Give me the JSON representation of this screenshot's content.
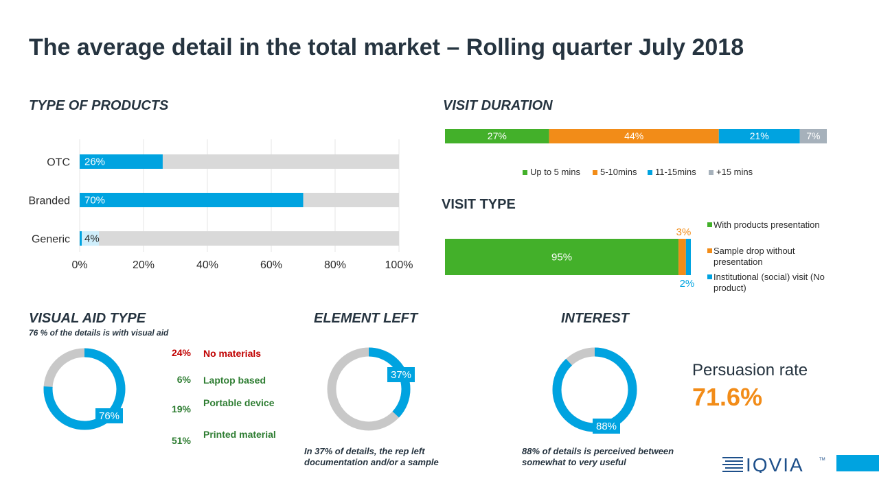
{
  "title": "The average detail in the total market – Rolling quarter July 2018",
  "colors": {
    "blue": "#00a3e0",
    "green": "#43b02a",
    "orange": "#f28c18",
    "gray": "#a6b1bb",
    "track": "#d9d9d9",
    "red": "#c00000",
    "dark_green": "#2e7d32"
  },
  "chart_data": [
    {
      "id": "type_of_products",
      "type": "bar",
      "orientation": "horizontal",
      "title": "TYPE OF PRODUCTS",
      "categories": [
        "OTC",
        "Branded",
        "Generic"
      ],
      "values": [
        26,
        70,
        4
      ],
      "value_labels": [
        "26%",
        "70%",
        "4%"
      ],
      "xlim": [
        0,
        100
      ],
      "xticks": [
        "0%",
        "20%",
        "40%",
        "60%",
        "80%",
        "100%"
      ],
      "grid": true
    },
    {
      "id": "visit_duration",
      "type": "bar",
      "orientation": "horizontal-stacked",
      "title": "VISIT DURATION",
      "series": [
        {
          "name": "Up to 5 mins",
          "value": 27,
          "label": "27%",
          "color": "#43b02a"
        },
        {
          "name": "5-10mins",
          "value": 44,
          "label": "44%",
          "color": "#f28c18"
        },
        {
          "name": "11-15mins",
          "value": 21,
          "label": "21%",
          "color": "#00a3e0"
        },
        {
          "name": "+15 mins",
          "value": 7,
          "label": "7%",
          "color": "#a6b1bb"
        }
      ],
      "legend": "bottom"
    },
    {
      "id": "visit_type",
      "type": "bar",
      "orientation": "horizontal-stacked",
      "title": "VISIT TYPE",
      "series": [
        {
          "name": "With products presentation",
          "value": 95,
          "label": "95%",
          "color": "#43b02a"
        },
        {
          "name": "Sample drop without presentation",
          "value": 3,
          "label": "3%",
          "color": "#f28c18"
        },
        {
          "name": "Institutional (social) visit (No product)",
          "value": 2,
          "label": "2%",
          "color": "#00a3e0"
        }
      ],
      "legend": "right"
    },
    {
      "id": "visual_aid_type",
      "type": "pie",
      "title": "VISUAL AID TYPE",
      "subtitle": "76 % of the details is with visual aid",
      "values": [
        76,
        24
      ],
      "center_label": "76%",
      "breakdown": [
        {
          "pct": "24%",
          "label": "No materials",
          "color": "#c00000"
        },
        {
          "pct": "6%",
          "label": "Laptop based",
          "color": "#2e7d32"
        },
        {
          "pct": "19%",
          "label": "Portable device",
          "color": "#2e7d32"
        },
        {
          "pct": "51%",
          "label": "Printed material",
          "color": "#2e7d32"
        }
      ]
    },
    {
      "id": "element_left",
      "type": "pie",
      "title": "ELEMENT LEFT",
      "values": [
        37,
        63
      ],
      "center_label": "37%",
      "note": "In 37% of details, the rep left documentation and/or a sample"
    },
    {
      "id": "interest",
      "type": "pie",
      "title": "INTEREST",
      "values": [
        88,
        12
      ],
      "center_label": "88%",
      "note": "88% of details is perceived between somewhat to very useful"
    }
  ],
  "persuasion": {
    "label": "Persuasion rate",
    "value": "71.6%"
  },
  "logo": {
    "text": "IQVIA",
    "tm": "TM"
  }
}
